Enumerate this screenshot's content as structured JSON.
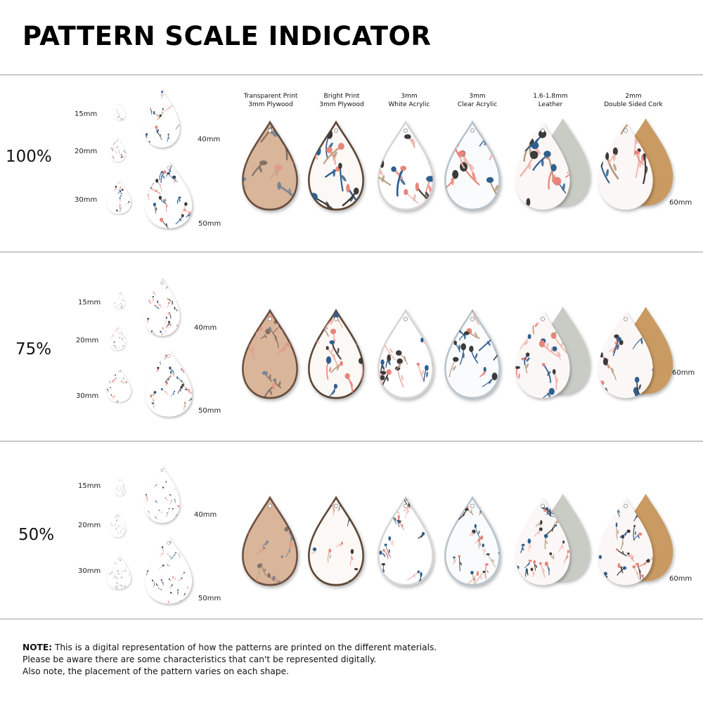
{
  "page": {
    "title": "PATTERN SCALE INDICATOR"
  },
  "materials": [
    {
      "line1": "Transparent Print",
      "line2": "3mm Plywood"
    },
    {
      "line1": "Bright Print",
      "line2": "3mm Plywood"
    },
    {
      "line1": "3mm",
      "line2": "White Acrylic"
    },
    {
      "line1": "3mm",
      "line2": "Clear Acrylic"
    },
    {
      "line1": "1.6-1.8mm",
      "line2": "Leather"
    },
    {
      "line1": "2mm",
      "line2": "Double Sided Cork"
    }
  ],
  "sections": [
    {
      "scale": "100%",
      "sizes": [
        "15mm",
        "20mm",
        "30mm",
        "40mm",
        "50mm",
        "60mm"
      ]
    },
    {
      "scale": "75%",
      "sizes": [
        "15mm",
        "20mm",
        "30mm",
        "40mm",
        "50mm",
        "60mm"
      ]
    },
    {
      "scale": "50%",
      "sizes": [
        "15mm",
        "20mm",
        "30mm",
        "40mm",
        "50mm",
        "60mm"
      ]
    }
  ],
  "note": {
    "lead": "NOTE:",
    "line1": " This is a digital representation of how the patterns are printed on the different materials.",
    "line2": "Please be aware there are some characteristics that can't be represented digitally.",
    "line3": "Also note, the placement of the pattern varies on each shape."
  },
  "colors": {
    "wood": "#d9b59a",
    "cork": "#c99a62",
    "leather_back": "#c9cbc5",
    "coral": "#e8857a",
    "navy": "#2f5f8f",
    "charcoal": "#3b3b3b",
    "tan": "#b79b7d",
    "pink": "#f0b4ad"
  }
}
